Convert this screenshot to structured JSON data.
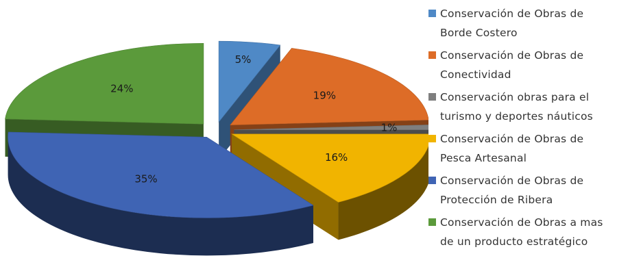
{
  "chart_data": {
    "type": "pie",
    "style": "3d-exploded",
    "slices": [
      {
        "label": "Conservación de Obras de Borde Costero",
        "value": 5,
        "value_label": "5%",
        "color": "#4f89c6"
      },
      {
        "label": "Conservación de Obras de Conectividad",
        "value": 19,
        "value_label": "19%",
        "color": "#dd6c27"
      },
      {
        "label": "Conservación obras para el turismo y deportes náuticos",
        "value": 1,
        "value_label": "1%",
        "color": "#7f7f7f"
      },
      {
        "label": "Conservación de Obras de Pesca Artesanal",
        "value": 16,
        "value_label": "16%",
        "color": "#f1b400"
      },
      {
        "label": "Conservación de Obras de Protección de Ribera",
        "value": 35,
        "value_label": "35%",
        "color": "#3f64b4"
      },
      {
        "label": "Conservación de Obras a mas de un producto estratégico",
        "value": 24,
        "value_label": "24%",
        "color": "#5b9a3b"
      }
    ],
    "legend_position": "right"
  },
  "legend": {
    "items": [
      {
        "line1": "Conservación de Obras de",
        "line2": "Borde Costero",
        "color": "#4f89c6"
      },
      {
        "line1": "Conservación de Obras de",
        "line2": "Conectividad",
        "color": "#dd6c27"
      },
      {
        "line1": "Conservación obras para el",
        "line2": "turismo y deportes náuticos",
        "color": "#7f7f7f"
      },
      {
        "line1": "Conservación de Obras de",
        "line2": "Pesca Artesanal",
        "color": "#f1b400"
      },
      {
        "line1": "Conservación de Obras de",
        "line2": "Protección de Ribera",
        "color": "#3f64b4"
      },
      {
        "line1": "Conservación de Obras a mas",
        "line2": "de un producto estratégico",
        "color": "#5b9a3b"
      }
    ]
  }
}
